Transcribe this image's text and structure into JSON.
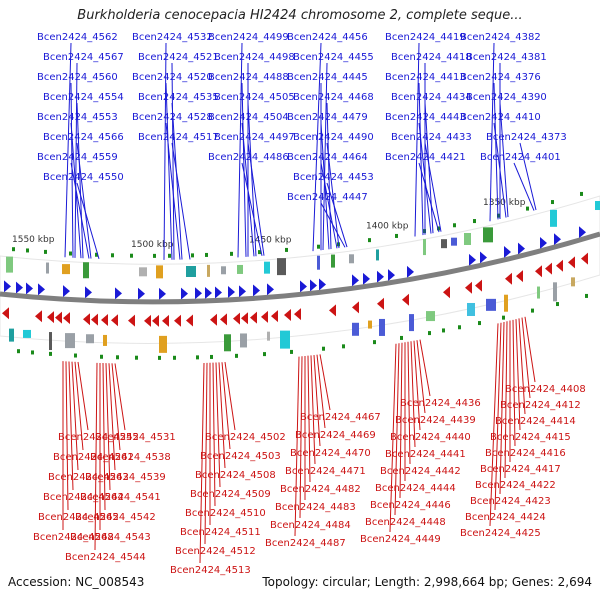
{
  "title": "Burkholderia cenocepacia HI2424 chromosome 2, complete seque...",
  "footer": {
    "accession": "Accession: NC_008543",
    "summary": "Topology: circular; Length: 2,998,664 bp; Genes: 2,694"
  },
  "colors": {
    "forward": "#1a1ad6",
    "reverse": "#cc1414",
    "backbone": "#7f7f7f"
  },
  "scale_labels": [
    "1550 kbp",
    "1500 kbp",
    "1450 kbp",
    "1400 kbp",
    "1350 kbp"
  ],
  "forward_genes": [
    "Bcen2424_4562",
    "Bcen2424_4567",
    "Bcen2424_4560",
    "Bcen2424_4554",
    "Bcen2424_4553",
    "Bcen2424_4566",
    "Bcen2424_4559",
    "Bcen2424_4550",
    "Bcen2424_4532",
    "Bcen2424_4521",
    "Bcen2424_4520",
    "Bcen2424_4535",
    "Bcen2424_4528",
    "Bcen2424_4517",
    "Bcen2424_4499",
    "Bcen2424_4498",
    "Bcen2424_4488",
    "Bcen2424_4505",
    "Bcen2424_4504",
    "Bcen2424_4497",
    "Bcen2424_4486",
    "Bcen2424_4456",
    "Bcen2424_4455",
    "Bcen2424_4445",
    "Bcen2424_4468",
    "Bcen2424_4479",
    "Bcen2424_4490",
    "Bcen2424_4464",
    "Bcen2424_4453",
    "Bcen2424_4447",
    "Bcen2424_4419",
    "Bcen2424_4418",
    "Bcen2424_4413",
    "Bcen2424_4434",
    "Bcen2424_4443",
    "Bcen2424_4433",
    "Bcen2424_4421",
    "Bcen2424_4382",
    "Bcen2424_4381",
    "Bcen2424_4376",
    "Bcen2424_4390",
    "Bcen2424_4410",
    "Bcen2424_4373",
    "Bcen2424_4401"
  ],
  "reverse_genes": [
    "Bcen2424_4555",
    "Bcen2424_4561",
    "Bcen2424_4563",
    "Bcen2424_4564",
    "Bcen2424_4565",
    "Bcen2424_4568",
    "Bcen2424_4531",
    "Bcen2424_4538",
    "Bcen2424_4539",
    "Bcen2424_4541",
    "Bcen2424_4542",
    "Bcen2424_4543",
    "Bcen2424_4544",
    "Bcen2424_4502",
    "Bcen2424_4503",
    "Bcen2424_4508",
    "Bcen2424_4509",
    "Bcen2424_4510",
    "Bcen2424_4511",
    "Bcen2424_4512",
    "Bcen2424_4513",
    "Bcen2424_4467",
    "Bcen2424_4469",
    "Bcen2424_4470",
    "Bcen2424_4471",
    "Bcen2424_4482",
    "Bcen2424_4483",
    "Bcen2424_4484",
    "Bcen2424_4487",
    "Bcen2424_4436",
    "Bcen2424_4439",
    "Bcen2424_4440",
    "Bcen2424_4441",
    "Bcen2424_4442",
    "Bcen2424_4444",
    "Bcen2424_4446",
    "Bcen2424_4448",
    "Bcen2424_4449",
    "Bcen2424_4408",
    "Bcen2424_4412",
    "Bcen2424_4414",
    "Bcen2424_4415",
    "Bcen2424_4416",
    "Bcen2424_4417",
    "Bcen2424_4422",
    "Bcen2424_4423",
    "Bcen2424_4424",
    "Bcen2424_4425"
  ]
}
